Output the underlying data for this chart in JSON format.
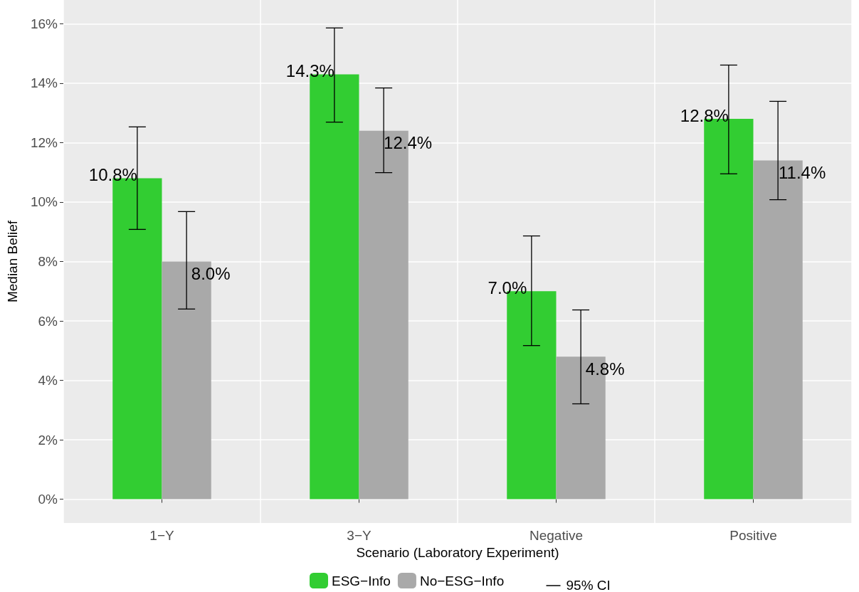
{
  "chart_data": {
    "type": "bar",
    "xlabel": "Scenario (Laboratory Experiment)",
    "ylabel": "Median Belief",
    "categories": [
      "1−Y",
      "3−Y",
      "Negative",
      "Positive"
    ],
    "series": [
      {
        "name": "ESG−Info",
        "color": "#32cd32",
        "values": [
          10.8,
          14.3,
          7.0,
          12.8
        ],
        "value_labels": [
          "10.8%",
          "14.3%",
          "7.0%",
          "12.8%"
        ],
        "errors": [
          [
            9.08,
            12.53
          ],
          [
            12.69,
            15.86
          ],
          [
            5.17,
            8.86
          ],
          [
            10.95,
            14.61
          ]
        ]
      },
      {
        "name": "No−ESG−Info",
        "color": "#a9a9a9",
        "values": [
          8.0,
          12.4,
          4.8,
          11.4
        ],
        "value_labels": [
          "8.0%",
          "12.4%",
          "4.8%",
          "11.4%"
        ],
        "errors": [
          [
            6.4,
            9.68
          ],
          [
            10.99,
            13.84
          ],
          [
            3.21,
            6.37
          ],
          [
            10.08,
            13.39
          ]
        ]
      }
    ],
    "ylim": [
      -0.8,
      16.8
    ],
    "yticks": [
      {
        "value": 0,
        "label": "0%"
      },
      {
        "value": 2,
        "label": "2%"
      },
      {
        "value": 4,
        "label": "4%"
      },
      {
        "value": 6,
        "label": "6%"
      },
      {
        "value": 8,
        "label": "8%"
      },
      {
        "value": 10,
        "label": "10%"
      },
      {
        "value": 12,
        "label": "12%"
      },
      {
        "value": 14,
        "label": "14%"
      },
      {
        "value": 16,
        "label": "16%"
      }
    ],
    "grid": true,
    "legend": "bottom",
    "annotations": [
      "95% CI"
    ]
  }
}
